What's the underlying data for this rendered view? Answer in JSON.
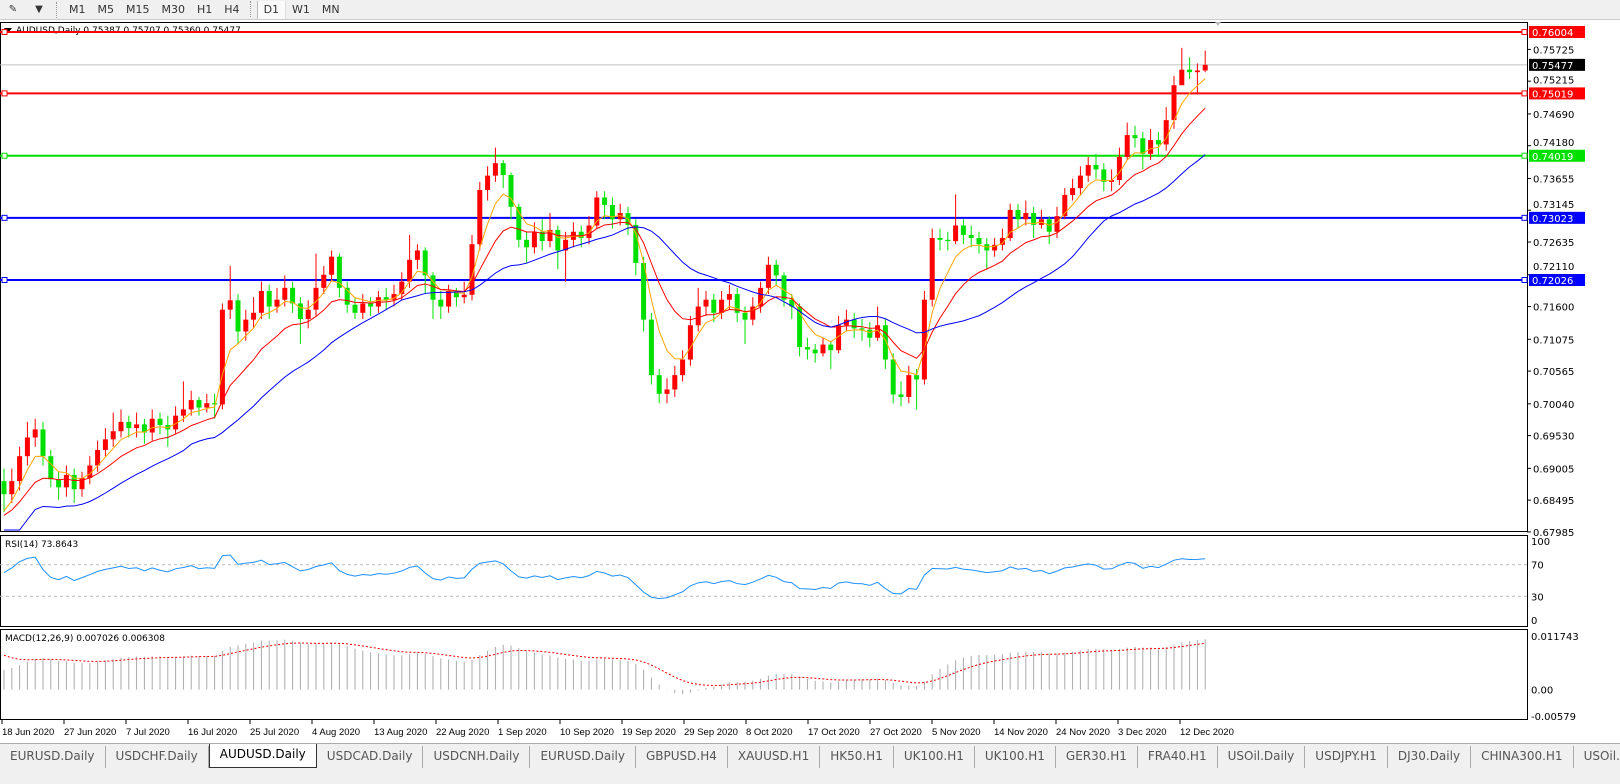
{
  "toolbar": {
    "timeframes": [
      "M1",
      "M5",
      "M15",
      "M30",
      "H1",
      "H4",
      "D1",
      "W1",
      "MN"
    ],
    "active": "D1"
  },
  "chart": {
    "header": "AUDUSD,Daily  0.75387 0.75707 0.75360 0.75477",
    "symbol": "AUDUSD",
    "period": "Daily",
    "current_price": "0.75477",
    "price_ticks": [
      "0.75725",
      "0.75215",
      "0.74690",
      "0.74180",
      "0.73655",
      "0.73145",
      "0.72635",
      "0.72110",
      "0.71600",
      "0.71075",
      "0.70565",
      "0.70040",
      "0.69530",
      "0.69005",
      "0.68495",
      "0.67985"
    ],
    "price_range": [
      0.67985,
      0.76004
    ],
    "levels": [
      {
        "price": "0.76004",
        "color": "#ff0000"
      },
      {
        "price": "0.75019",
        "color": "#ff0000"
      },
      {
        "price": "0.74019",
        "color": "#00e000"
      },
      {
        "price": "0.73023",
        "color": "#0000ff"
      },
      {
        "price": "0.72026",
        "color": "#0000ff"
      }
    ],
    "colors": {
      "bull": "#ff0000",
      "bear": "#00e000",
      "ma_fast": "#ffa500",
      "ma_mid": "#ff0000",
      "ma_slow": "#0000ff"
    },
    "date_labels": [
      "18 Jun 2020",
      "27 Jun 2020",
      "7 Jul 2020",
      "16 Jul 2020",
      "25 Jul 2020",
      "4 Aug 2020",
      "13 Aug 2020",
      "22 Aug 2020",
      "1 Sep 2020",
      "10 Sep 2020",
      "19 Sep 2020",
      "29 Sep 2020",
      "8 Oct 2020",
      "17 Oct 2020",
      "27 Oct 2020",
      "5 Nov 2020",
      "14 Nov 2020",
      "24 Nov 2020",
      "3 Dec 2020",
      "12 Dec 2020"
    ],
    "first_open": 0.688,
    "close": [
      0.6859,
      0.688,
      0.692,
      0.695,
      0.6963,
      0.692,
      0.6883,
      0.687,
      0.689,
      0.6867,
      0.6885,
      0.6905,
      0.693,
      0.6947,
      0.696,
      0.6975,
      0.6965,
      0.6971,
      0.6958,
      0.698,
      0.697,
      0.6963,
      0.6985,
      0.6995,
      0.701,
      0.6998,
      0.7005,
      0.7003,
      0.7155,
      0.717,
      0.712,
      0.7139,
      0.715,
      0.7185,
      0.716,
      0.7171,
      0.719,
      0.7165,
      0.714,
      0.7155,
      0.719,
      0.7211,
      0.724,
      0.719,
      0.7163,
      0.715,
      0.7165,
      0.716,
      0.7175,
      0.7171,
      0.718,
      0.72,
      0.7235,
      0.725,
      0.721,
      0.7171,
      0.716,
      0.7185,
      0.7175,
      0.7179,
      0.726,
      0.7347,
      0.737,
      0.739,
      0.7371,
      0.732,
      0.7267,
      0.7255,
      0.728,
      0.7265,
      0.7283,
      0.725,
      0.7267,
      0.728,
      0.727,
      0.729,
      0.7335,
      0.7323,
      0.73,
      0.731,
      0.7291,
      0.723,
      0.7139,
      0.705,
      0.702,
      0.7027,
      0.705,
      0.7075,
      0.713,
      0.716,
      0.7171,
      0.715,
      0.7171,
      0.718,
      0.715,
      0.7139,
      0.716,
      0.719,
      0.7227,
      0.721,
      0.7171,
      0.716,
      0.7095,
      0.7091,
      0.7085,
      0.7099,
      0.709,
      0.713,
      0.7139,
      0.7125,
      0.7123,
      0.711,
      0.713,
      0.7075,
      0.7019,
      0.7015,
      0.705,
      0.7043,
      0.7171,
      0.727,
      0.7267,
      0.7265,
      0.729,
      0.7275,
      0.727,
      0.726,
      0.725,
      0.7259,
      0.727,
      0.7315,
      0.73,
      0.731,
      0.7291,
      0.73,
      0.728,
      0.7305,
      0.7339,
      0.735,
      0.737,
      0.7387,
      0.738,
      0.736,
      0.7363,
      0.74,
      0.7435,
      0.743,
      0.7405,
      0.7427,
      0.742,
      0.7459,
      0.7515,
      0.754,
      0.7536,
      0.75387,
      0.75477
    ],
    "high": [
      0.69,
      0.69,
      0.6935,
      0.6975,
      0.698,
      0.6975,
      0.693,
      0.6895,
      0.6905,
      0.69,
      0.6895,
      0.692,
      0.6945,
      0.6965,
      0.699,
      0.6995,
      0.6985,
      0.699,
      0.698,
      0.6995,
      0.699,
      0.6985,
      0.7,
      0.704,
      0.7025,
      0.7015,
      0.702,
      0.702,
      0.7165,
      0.7225,
      0.718,
      0.7155,
      0.7175,
      0.72,
      0.7195,
      0.719,
      0.721,
      0.72,
      0.7175,
      0.717,
      0.7245,
      0.7225,
      0.725,
      0.7245,
      0.72,
      0.7175,
      0.718,
      0.7175,
      0.7185,
      0.719,
      0.7195,
      0.7215,
      0.7275,
      0.726,
      0.7255,
      0.7215,
      0.7185,
      0.7195,
      0.719,
      0.72,
      0.7275,
      0.736,
      0.7385,
      0.7415,
      0.7395,
      0.7375,
      0.7325,
      0.728,
      0.7295,
      0.73,
      0.731,
      0.729,
      0.728,
      0.7295,
      0.729,
      0.7305,
      0.7345,
      0.7345,
      0.7335,
      0.7325,
      0.732,
      0.73,
      0.724,
      0.715,
      0.706,
      0.7045,
      0.7065,
      0.709,
      0.7145,
      0.719,
      0.7185,
      0.718,
      0.7185,
      0.7195,
      0.719,
      0.716,
      0.7175,
      0.72,
      0.724,
      0.7235,
      0.7215,
      0.718,
      0.7165,
      0.711,
      0.71,
      0.711,
      0.7105,
      0.7145,
      0.7155,
      0.715,
      0.714,
      0.7135,
      0.716,
      0.714,
      0.7085,
      0.704,
      0.7065,
      0.706,
      0.7185,
      0.7285,
      0.7285,
      0.728,
      0.734,
      0.73,
      0.729,
      0.728,
      0.727,
      0.727,
      0.7285,
      0.7325,
      0.7325,
      0.733,
      0.732,
      0.7315,
      0.7305,
      0.732,
      0.735,
      0.7365,
      0.7385,
      0.74,
      0.7405,
      0.739,
      0.738,
      0.7415,
      0.7455,
      0.745,
      0.744,
      0.7445,
      0.744,
      0.748,
      0.753,
      0.7575,
      0.756,
      0.755,
      0.75707
    ],
    "low": [
      0.683,
      0.6845,
      0.6865,
      0.6905,
      0.6935,
      0.6905,
      0.687,
      0.685,
      0.6855,
      0.6845,
      0.6855,
      0.6875,
      0.6895,
      0.692,
      0.6935,
      0.695,
      0.695,
      0.695,
      0.694,
      0.6945,
      0.6955,
      0.6935,
      0.6955,
      0.6975,
      0.6985,
      0.6985,
      0.699,
      0.698,
      0.6995,
      0.714,
      0.71,
      0.7105,
      0.7125,
      0.714,
      0.714,
      0.715,
      0.716,
      0.715,
      0.71,
      0.7125,
      0.7145,
      0.718,
      0.72,
      0.7175,
      0.715,
      0.714,
      0.714,
      0.7145,
      0.715,
      0.7155,
      0.716,
      0.717,
      0.719,
      0.722,
      0.718,
      0.714,
      0.714,
      0.715,
      0.716,
      0.7165,
      0.717,
      0.725,
      0.733,
      0.736,
      0.735,
      0.73,
      0.7255,
      0.723,
      0.7245,
      0.725,
      0.7255,
      0.722,
      0.72,
      0.7255,
      0.7255,
      0.726,
      0.7285,
      0.73,
      0.7285,
      0.729,
      0.7275,
      0.721,
      0.712,
      0.7035,
      0.7005,
      0.7005,
      0.7015,
      0.704,
      0.7065,
      0.712,
      0.7145,
      0.7135,
      0.714,
      0.7155,
      0.7135,
      0.71,
      0.713,
      0.715,
      0.718,
      0.7195,
      0.716,
      0.714,
      0.708,
      0.7075,
      0.707,
      0.708,
      0.706,
      0.7085,
      0.712,
      0.711,
      0.7105,
      0.7095,
      0.7105,
      0.706,
      0.7005,
      0.7,
      0.7005,
      0.6995,
      0.7035,
      0.716,
      0.725,
      0.725,
      0.726,
      0.726,
      0.7255,
      0.7245,
      0.722,
      0.724,
      0.725,
      0.7265,
      0.7285,
      0.729,
      0.727,
      0.7285,
      0.726,
      0.727,
      0.73,
      0.733,
      0.734,
      0.736,
      0.7365,
      0.7345,
      0.7345,
      0.7355,
      0.7395,
      0.7415,
      0.738,
      0.7395,
      0.74,
      0.741,
      0.7445,
      0.752,
      0.7525,
      0.75,
      0.7536
    ]
  },
  "rsi": {
    "label": "RSI(14) 73.8643",
    "ticks": [
      "100",
      "70",
      "30",
      "0"
    ]
  },
  "macd": {
    "label": "MACD(12,26,9) 0.007026 0.006308",
    "ticks": [
      "0.011743",
      "0.00",
      "-0.00579"
    ],
    "range": [
      -0.00579,
      0.011743
    ]
  },
  "tabs": [
    "EURUSD.Daily",
    "USDCHF.Daily",
    "AUDUSD.Daily",
    "USDCAD.Daily",
    "USDCNH.Daily",
    "EURUSD.Daily",
    "GBPUSD.H4",
    "XAUUSD.H1",
    "HK50.H1",
    "UK100.H1",
    "UK100.H1",
    "GER30.H1",
    "FRA40.H1",
    "USOil.Daily",
    "USDJPY.H1",
    "DJ30.Daily",
    "CHINA300.H1",
    "USOil."
  ],
  "active_tab": "AUDUSD.Daily",
  "tab_nav": {
    "prev": "◂",
    "next": "▸"
  }
}
